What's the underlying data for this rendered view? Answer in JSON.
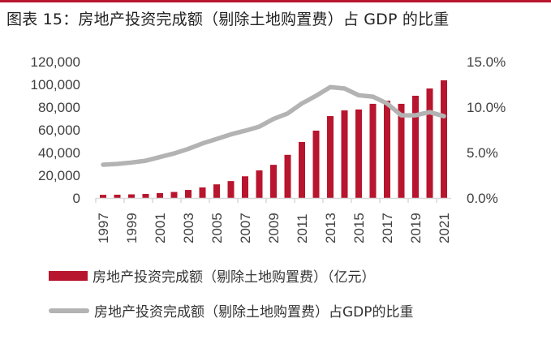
{
  "title": "图表 15：房地产投资完成额（剔除土地购置费）占 GDP 的比重",
  "colors": {
    "bar": "#B8152E",
    "line": "#B3B3B3",
    "top_rule": "#B8152E",
    "axis": "#D9D9D9",
    "tick_text": "#404040"
  },
  "chart_data": {
    "type": "bar+line",
    "title": "图表 15：房地产投资完成额（剔除土地购置费）占 GDP 的比重",
    "x": [
      "1997",
      "1998",
      "1999",
      "2000",
      "2001",
      "2002",
      "2003",
      "2004",
      "2005",
      "2006",
      "2007",
      "2008",
      "2009",
      "2010",
      "2011",
      "2012",
      "2013",
      "2014",
      "2015",
      "2016",
      "2017",
      "2018",
      "2019",
      "2020",
      "2021"
    ],
    "x_tick_labels": [
      "1997",
      "1999",
      "2001",
      "2003",
      "2005",
      "2007",
      "2009",
      "2011",
      "2013",
      "2015",
      "2017",
      "2019",
      "2021"
    ],
    "series": [
      {
        "name": "房地产投资完成额（剔除土地购置费）（亿元）",
        "type": "bar",
        "axis": "left",
        "values": [
          2800,
          2900,
          3200,
          3600,
          4300,
          5300,
          7100,
          9300,
          12000,
          14900,
          19100,
          24300,
          29200,
          38000,
          49300,
          59300,
          72100,
          77100,
          77900,
          82900,
          85700,
          82900,
          90000,
          96400,
          103600
        ]
      },
      {
        "name": "房地产投资完成额（剔除土地购置费）占GDP的比重",
        "type": "line",
        "axis": "right",
        "unit": "%",
        "values": [
          3.66,
          3.75,
          3.9,
          4.1,
          4.5,
          4.9,
          5.4,
          6.0,
          6.5,
          7.0,
          7.4,
          7.85,
          8.7,
          9.3,
          10.4,
          11.25,
          12.2,
          12.05,
          11.3,
          11.15,
          10.4,
          9.1,
          9.1,
          9.45,
          9.0
        ]
      }
    ],
    "y_left": {
      "ylim": [
        0,
        120000
      ],
      "ticks": [
        0,
        20000,
        40000,
        60000,
        80000,
        100000,
        120000
      ],
      "tick_labels": [
        "0",
        "20,000",
        "40,000",
        "60,000",
        "80,000",
        "100,000",
        "120,000"
      ]
    },
    "y_right": {
      "ylim": [
        0,
        15
      ],
      "ticks": [
        0,
        5,
        10,
        15
      ],
      "tick_labels": [
        "0.0%",
        "5.0%",
        "10.0%",
        "15.0%"
      ]
    },
    "xlabel": "",
    "ylabel": "",
    "grid": false,
    "legend_position": "bottom",
    "legend": [
      {
        "label": "房地产投资完成额（剔除土地购置费）（亿元）",
        "marker": "bar"
      },
      {
        "label": "房地产投资完成额（剔除土地购置费）占GDP的比重",
        "marker": "line"
      }
    ]
  }
}
